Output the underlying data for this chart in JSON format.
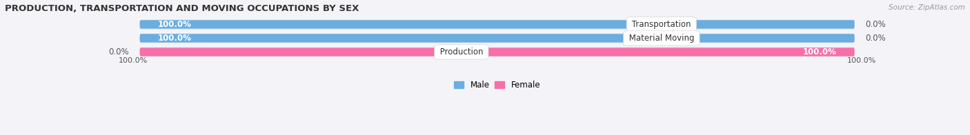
{
  "title": "PRODUCTION, TRANSPORTATION AND MOVING OCCUPATIONS BY SEX",
  "source": "Source: ZipAtlas.com",
  "categories": [
    "Transportation",
    "Material Moving",
    "Production"
  ],
  "male_values": [
    100.0,
    100.0,
    0.0
  ],
  "female_values": [
    0.0,
    0.0,
    100.0
  ],
  "male_color": "#6aaee0",
  "female_color": "#f76fa8",
  "male_light_color": "#aacde8",
  "female_light_color": "#f9a8cc",
  "bg_color": "#f4f4f8",
  "row_bg_color": "#ebebf0",
  "bar_bg_color": "#e2e2ea",
  "title_fontsize": 9.5,
  "source_fontsize": 7.5,
  "label_fontsize": 8.5,
  "value_fontsize": 8.5,
  "bar_height": 0.62,
  "figsize": [
    14.06,
    1.96
  ],
  "dpi": 100,
  "x_left_label": "100.0%",
  "x_right_label": "100.0%",
  "x_axis_label_fontsize": 8.0
}
